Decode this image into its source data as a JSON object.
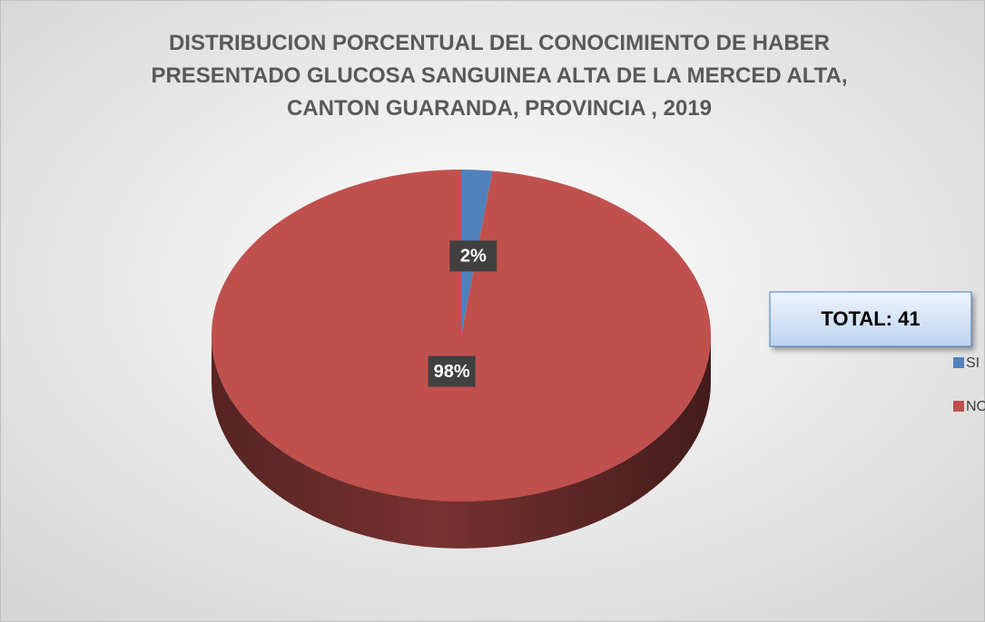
{
  "chart_data": {
    "type": "pie",
    "title": "DISTRIBUCION PORCENTUAL DEL CONOCIMIENTO DE HABER PRESENTADO GLUCOSA SANGUINEA ALTA DE LA MERCED ALTA, CANTON GUARANDA, PROVINCIA , 2019",
    "categories": [
      "SI",
      "NO"
    ],
    "values": [
      2,
      98
    ],
    "value_labels": [
      "2%",
      "98%"
    ],
    "colors": [
      "#4f81bd",
      "#c0504d"
    ],
    "annotation": "TOTAL: 41",
    "legend": "right"
  }
}
